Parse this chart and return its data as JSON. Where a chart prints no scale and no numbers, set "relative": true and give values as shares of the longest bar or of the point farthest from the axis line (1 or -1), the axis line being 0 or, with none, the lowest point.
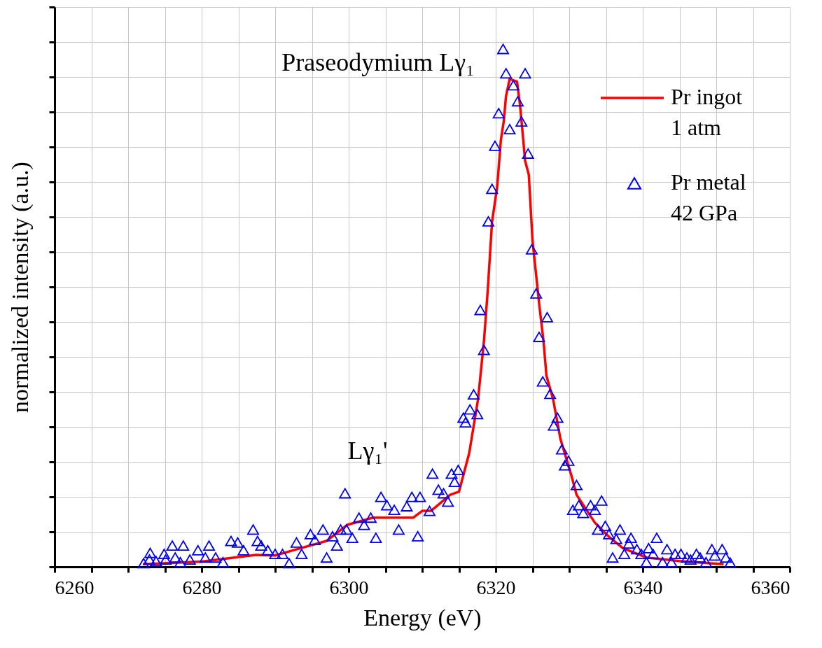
{
  "chart_data": {
    "type": "line",
    "xlabel": "Energy (eV)",
    "ylabel": "normalized intensity (a.u.)",
    "relative": true,
    "grid": true,
    "legend": "top right",
    "xlim": [
      6260,
      6360
    ],
    "xticks": [
      6260,
      {
        "value": 6265,
        "label": null
      },
      {
        "value": 6270,
        "label": null
      },
      {
        "value": 6275,
        "label": null
      },
      6280,
      {
        "value": 6285,
        "label": null
      },
      {
        "value": 6290,
        "label": null
      },
      {
        "value": 6295,
        "label": null
      },
      6300,
      {
        "value": 6305,
        "label": null
      },
      {
        "value": 6310,
        "label": null
      },
      {
        "value": 6315,
        "label": null
      },
      6320,
      {
        "value": 6325,
        "label": null
      },
      {
        "value": 6330,
        "label": null
      },
      {
        "value": 6335,
        "label": null
      },
      6340,
      {
        "value": 6345,
        "label": null
      },
      {
        "value": 6350,
        "label": null
      },
      {
        "value": 6355,
        "label": null
      },
      6360
    ],
    "annotations": [
      "Praseodymium Lγ₁",
      "Lγ₁'"
    ],
    "series": [
      {
        "name": "Pr ingot\n1 atm",
        "color": "#ff0000",
        "line_style": "solid",
        "marker": "none",
        "x": [
          6272,
          6280,
          6287.4,
          6290,
          6292.2,
          6297,
          6299.8,
          6303.3,
          6305,
          6308.8,
          6310,
          6311.2,
          6313.8,
          6315,
          6316.4,
          6317.6,
          6318.4,
          6318.9,
          6319.5,
          6320.2,
          6320.7,
          6321.1,
          6321.4,
          6321.9,
          6322.9,
          6323.3,
          6323.6,
          6324.0,
          6324.5,
          6325.0,
          6325.9,
          6326.5,
          6326.9,
          6327.8,
          6328.8,
          6330.3,
          6331,
          6331.6,
          6333.5,
          6335.4,
          6337.3,
          6340.5,
          6345,
          6351
        ],
        "values": [
          0.005,
          0.01,
          0.023,
          0.022,
          0.031,
          0.05,
          0.081,
          0.095,
          0.095,
          0.095,
          0.108,
          0.108,
          0.139,
          0.145,
          0.22,
          0.324,
          0.436,
          0.531,
          0.666,
          0.734,
          0.824,
          0.861,
          0.909,
          0.942,
          0.937,
          0.892,
          0.847,
          0.784,
          0.757,
          0.631,
          0.509,
          0.436,
          0.369,
          0.324,
          0.247,
          0.176,
          0.139,
          0.126,
          0.085,
          0.058,
          0.036,
          0.018,
          0.011,
          0.005
        ]
      },
      {
        "name": "Pr metal\n42 GPa",
        "type": "scatter",
        "color": "#0000ff",
        "marker": "triangle",
        "x": [
          6272.1,
          6273.0,
          6272.9,
          6273.8,
          6274.9,
          6275.1,
          6276.0,
          6277.5,
          6276.4,
          6277.1,
          6278.4,
          6279.5,
          6280.5,
          6281.0,
          6281.9,
          6282.9,
          6284.0,
          6284.9,
          6285.7,
          6287.0,
          6287.6,
          6288.1,
          6289.0,
          6290.0,
          6291.0,
          6291.9,
          6292.9,
          6293.6,
          6294.8,
          6295.4,
          6296.5,
          6297.0,
          6297.8,
          6298.4,
          6298.9,
          6299.7,
          6299.5,
          6300.5,
          6301.4,
          6302.1,
          6303.0,
          6303.7,
          6304.4,
          6305.2,
          6306.2,
          6306.8,
          6307.9,
          6308.6,
          6309.4,
          6309.7,
          6311.0,
          6311.4,
          6312.2,
          6312.9,
          6313.5,
          6314.0,
          6314.4,
          6314.9,
          6315.6,
          6315.9,
          6316.5,
          6317.5,
          6317.0,
          6318.4,
          6317.9,
          6319.0,
          6319.5,
          6319.9,
          6320.4,
          6321.0,
          6321.4,
          6321.9,
          6322.4,
          6323.0,
          6323.5,
          6324.0,
          6324.4,
          6324.9,
          6325.5,
          6327.0,
          6325.9,
          6326.4,
          6327.4,
          6328.4,
          6327.9,
          6329.0,
          6329.4,
          6329.9,
          6331.0,
          6330.5,
          6331.3,
          6331.9,
          6332.9,
          6333.5,
          6334.4,
          6333.9,
          6334.9,
          6335.4,
          6336.9,
          6336.4,
          6335.9,
          6337.5,
          6338.4,
          6338.1,
          6339.2,
          6339.8,
          6340.5,
          6340.8,
          6341.9,
          6341.4,
          6342.7,
          6343.3,
          6343.9,
          6344.4,
          6345.2,
          6346.0,
          6346.5,
          6347.3,
          6347.8,
          6348.6,
          6349.4,
          6349.8,
          6350.8,
          6351.3,
          6351.9
        ],
        "values": [
          0.007,
          0.027,
          0.014,
          0.011,
          0.025,
          0.014,
          0.041,
          0.041,
          0.018,
          0.009,
          0.014,
          0.032,
          0.018,
          0.041,
          0.018,
          0.009,
          0.05,
          0.047,
          0.032,
          0.072,
          0.05,
          0.041,
          0.032,
          0.025,
          0.025,
          0.007,
          0.047,
          0.025,
          0.063,
          0.052,
          0.072,
          0.018,
          0.059,
          0.041,
          0.072,
          0.072,
          0.142,
          0.056,
          0.095,
          0.081,
          0.095,
          0.056,
          0.135,
          0.119,
          0.11,
          0.072,
          0.117,
          0.135,
          0.059,
          0.135,
          0.108,
          0.18,
          0.149,
          0.142,
          0.126,
          0.18,
          0.164,
          0.187,
          0.288,
          0.279,
          0.304,
          0.295,
          0.333,
          0.419,
          0.496,
          0.667,
          0.73,
          0.813,
          0.876,
          1.0,
          0.953,
          0.845,
          0.93,
          0.899,
          0.86,
          0.953,
          0.798,
          0.613,
          0.528,
          0.482,
          0.444,
          0.358,
          0.334,
          0.288,
          0.273,
          0.227,
          0.196,
          0.205,
          0.158,
          0.11,
          0.119,
          0.104,
          0.119,
          0.11,
          0.128,
          0.072,
          0.079,
          0.063,
          0.072,
          0.054,
          0.018,
          0.025,
          0.056,
          0.045,
          0.034,
          0.025,
          0.009,
          0.036,
          0.056,
          0.025,
          0.009,
          0.034,
          0.009,
          0.025,
          0.025,
          0.018,
          0.014,
          0.025,
          0.018,
          0.009,
          0.034,
          0.022,
          0.034,
          0.018,
          0.008
        ]
      }
    ]
  }
}
